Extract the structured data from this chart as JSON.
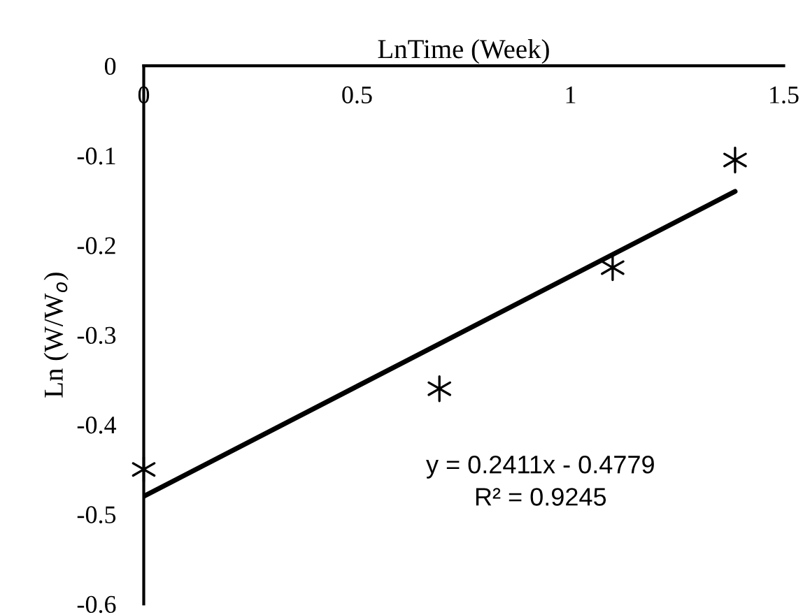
{
  "chart_data": {
    "type": "scatter",
    "xlabel": "LnTime (Week)",
    "ylabel": "Ln (W/W$_{o}$)",
    "xlim": [
      0,
      1.5
    ],
    "xticks": [
      0,
      0.5,
      1,
      1.5
    ],
    "ylim": [
      -0.6,
      0
    ],
    "yticks": [
      -0.6,
      -0.5,
      -0.4,
      -0.3,
      -0.2,
      -0.1,
      0
    ],
    "grid": false,
    "legend": false,
    "marker": "cross",
    "series": [
      {
        "color": "#000000",
        "x": [
          0,
          0.693,
          1.099,
          1.386
        ],
        "values": [
          -0.45,
          -0.36,
          -0.225,
          -0.105
        ]
      },
      {
        "type": "line",
        "color": "#000000",
        "line_style": "solid",
        "marker": "none",
        "x": [
          0,
          1.386
        ],
        "values": [
          -0.48,
          -0.14
        ]
      }
    ],
    "annotations": [
      "y = 0.2411x - 0.4779",
      "R² = 0.9245"
    ]
  }
}
